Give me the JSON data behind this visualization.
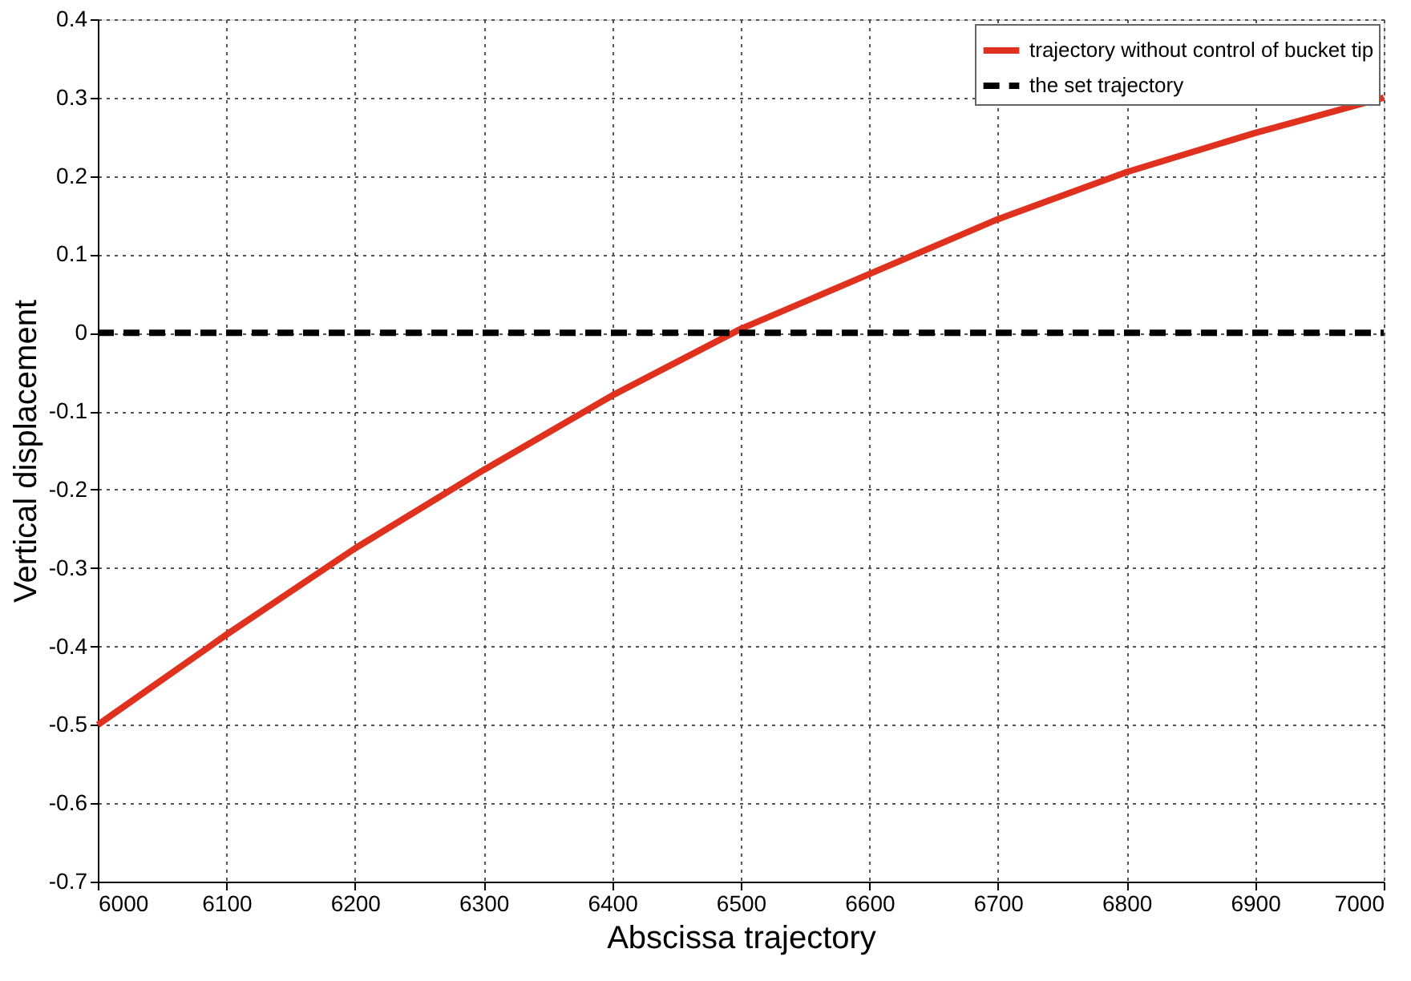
{
  "chart_data": {
    "type": "line",
    "xlabel": "Abscissa trajectory",
    "ylabel": "Vertical displacement",
    "x": [
      6000,
      6100,
      6200,
      6300,
      6400,
      6500,
      6600,
      6700,
      6800,
      6900,
      7000
    ],
    "series": [
      {
        "name": "trajectory without control of bucket tip",
        "color": "#e0301e",
        "line_style": "solid",
        "values": [
          -0.5,
          -0.385,
          -0.275,
          -0.175,
          -0.08,
          0.005,
          0.075,
          0.145,
          0.205,
          0.255,
          0.3
        ]
      },
      {
        "name": "the set trajectory",
        "color": "#000000",
        "line_style": "dashed",
        "values": [
          0,
          0,
          0,
          0,
          0,
          0,
          0,
          0,
          0,
          0,
          0
        ]
      }
    ],
    "xlim": [
      6000,
      7000
    ],
    "xticks": [
      6000,
      6100,
      6200,
      6300,
      6400,
      6500,
      6600,
      6700,
      6800,
      6900,
      7000
    ],
    "ylim": [
      -0.7,
      0.4
    ],
    "yticks": [
      -0.7,
      -0.6,
      -0.5,
      -0.4,
      -0.3,
      -0.2,
      -0.1,
      0,
      0.1,
      0.2,
      0.3,
      0.4
    ],
    "grid": true,
    "legend": "top right",
    "marker": "none"
  }
}
